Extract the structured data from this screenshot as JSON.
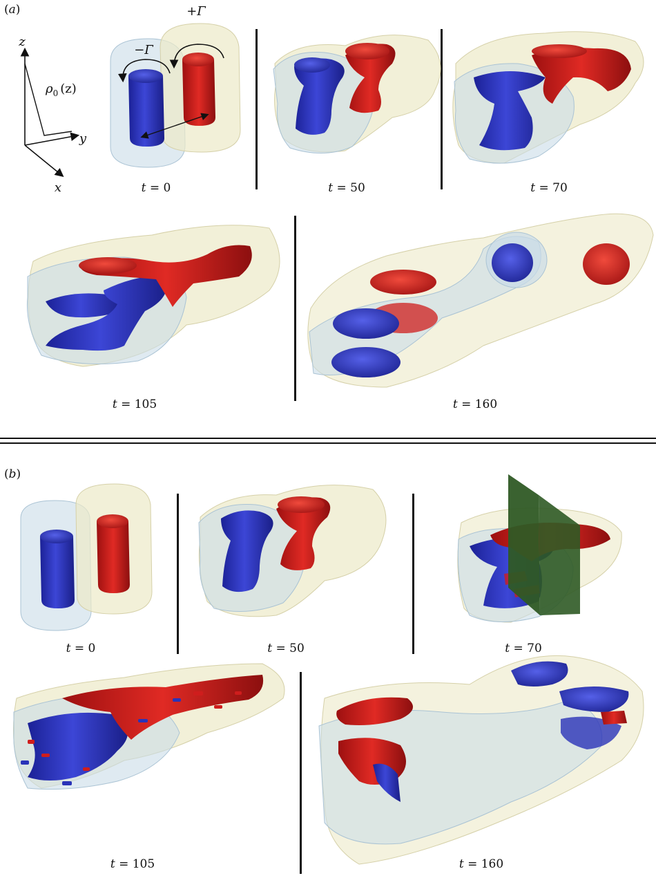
{
  "panel_a": {
    "label": "(a)",
    "axes": {
      "z": "z",
      "y": "y",
      "x": "x",
      "rho": "ρ",
      "rho_sub": "0",
      "rho_arg": "(z)"
    },
    "vortices": {
      "neg": "−Γ",
      "pos": "+Γ"
    },
    "times": [
      "t = 0",
      "t = 50",
      "t = 70",
      "t = 105",
      "t = 160"
    ]
  },
  "panel_b": {
    "label": "(b)",
    "times": [
      "t = 0",
      "t = 50",
      "t = 70",
      "t = 105",
      "t = 160"
    ]
  },
  "colors": {
    "blue": "#2a33b8",
    "red": "#cf1d1d",
    "cyan_envelope": "#c9dce8",
    "yellow_envelope": "#ece9c8",
    "green_plane": "#2f5a25"
  }
}
